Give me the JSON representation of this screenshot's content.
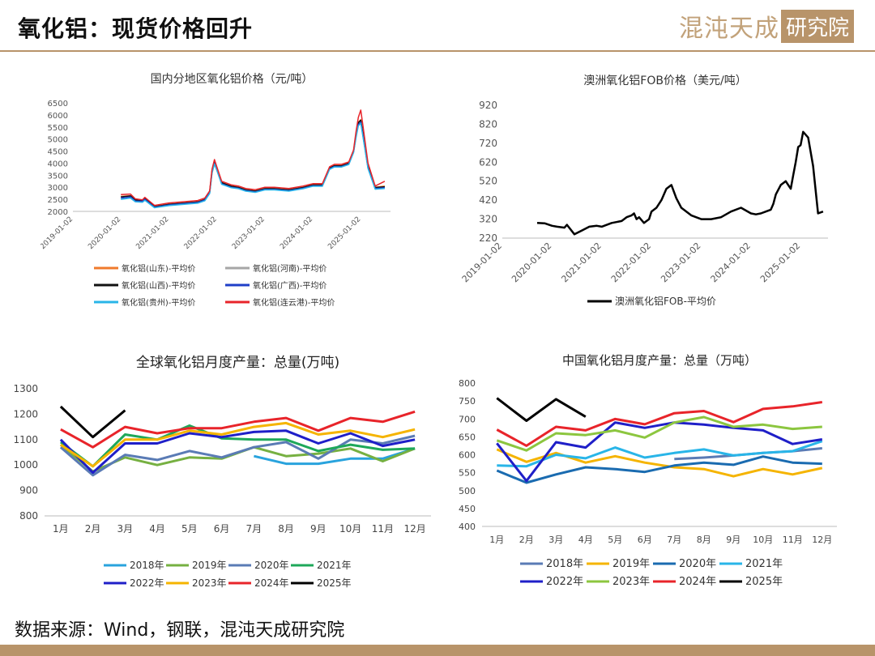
{
  "header": {
    "title": "氧化铝：现货价格回升",
    "logo_text": "混沌天成",
    "logo_box_text": "研究院"
  },
  "footer": {
    "source": "数据来源：Wind，钢联，混沌天成研究院"
  },
  "colors": {
    "brand": "#b8946a",
    "c2018": "#29a3dd",
    "c2019": "#76b041",
    "c2020": "#5a7bb5",
    "c2021": "#1ea85a",
    "c2022": "#1f1fc8",
    "c2023": "#f5b400",
    "c2024": "#e8242a",
    "c2025": "#000000"
  },
  "chart_data": [
    {
      "type": "line",
      "title": "国内分地区氧化铝价格（元/吨）",
      "x_ticks": [
        "2019-01-02",
        "2020-01-02",
        "2021-01-02",
        "2022-01-02",
        "2023-01-02",
        "2024-01-02",
        "2025-01-02"
      ],
      "x_range": [
        2019.0,
        2025.62
      ],
      "ylim": [
        2000,
        6500
      ],
      "y_ticks": [
        2000,
        2500,
        3000,
        3500,
        4000,
        4500,
        5000,
        5500,
        6000,
        6500
      ],
      "legend_position": "bottom",
      "series": [
        {
          "name": "氧化铝(山东)-平均价",
          "color": "#f07a2c",
          "x": [
            2020.0,
            2020.2,
            2020.3,
            2020.45,
            2020.5,
            2020.7,
            2021.0,
            2021.3,
            2021.6,
            2021.75,
            2021.85,
            2021.9,
            2021.95,
            2022.0,
            2022.1,
            2022.3,
            2022.45,
            2022.6,
            2022.8,
            2023.0,
            2023.2,
            2023.5,
            2023.8,
            2024.0,
            2024.2,
            2024.35,
            2024.45,
            2024.6,
            2024.75,
            2024.85,
            2024.9,
            2024.95,
            2025.0,
            2025.05,
            2025.15,
            2025.3,
            2025.5
          ],
          "values": [
            2620,
            2650,
            2480,
            2450,
            2550,
            2200,
            2300,
            2350,
            2400,
            2500,
            2800,
            3700,
            4100,
            3800,
            3200,
            3050,
            3000,
            2900,
            2850,
            2950,
            2950,
            2900,
            3000,
            3100,
            3100,
            3800,
            3900,
            3900,
            4000,
            4500,
            5200,
            5700,
            5800,
            5200,
            3900,
            3000,
            3050
          ]
        },
        {
          "name": "氧化铝(河南)-平均价",
          "color": "#a6a6a6",
          "x": [
            2020.0,
            2020.2,
            2020.3,
            2020.45,
            2020.5,
            2020.7,
            2021.0,
            2021.3,
            2021.6,
            2021.75,
            2021.85,
            2021.9,
            2021.95,
            2022.0,
            2022.1,
            2022.3,
            2022.45,
            2022.6,
            2022.8,
            2023.0,
            2023.2,
            2023.5,
            2023.8,
            2024.0,
            2024.2,
            2024.35,
            2024.45,
            2024.6,
            2024.75,
            2024.85,
            2024.9,
            2024.95,
            2025.0,
            2025.05,
            2025.15,
            2025.3,
            2025.5
          ],
          "values": [
            2600,
            2620,
            2450,
            2430,
            2520,
            2180,
            2280,
            2330,
            2380,
            2480,
            2780,
            3650,
            4050,
            3780,
            3180,
            3030,
            2980,
            2880,
            2830,
            2930,
            2930,
            2880,
            2980,
            3080,
            3080,
            3780,
            3880,
            3880,
            3980,
            4480,
            5150,
            5650,
            5750,
            5150,
            3850,
            2980,
            3000
          ]
        },
        {
          "name": "氧化铝(山西)-平均价",
          "color": "#111111",
          "x": [
            2020.0,
            2020.2,
            2020.3,
            2020.45,
            2020.5,
            2020.7,
            2021.0,
            2021.3,
            2021.6,
            2021.75,
            2021.85,
            2021.9,
            2021.95,
            2022.0,
            2022.1,
            2022.3,
            2022.45,
            2022.6,
            2022.8,
            2023.0,
            2023.2,
            2023.5,
            2023.8,
            2024.0,
            2024.2,
            2024.35,
            2024.45,
            2024.6,
            2024.75,
            2024.85,
            2024.9,
            2024.95,
            2025.0,
            2025.05,
            2025.15,
            2025.3,
            2025.5
          ],
          "values": [
            2600,
            2640,
            2470,
            2440,
            2540,
            2190,
            2290,
            2340,
            2390,
            2490,
            2790,
            3680,
            4080,
            3790,
            3190,
            3040,
            2990,
            2890,
            2840,
            2940,
            2940,
            2890,
            2990,
            3090,
            3090,
            3790,
            3890,
            3890,
            3990,
            4490,
            5180,
            5680,
            5780,
            5180,
            3870,
            2990,
            3020
          ]
        },
        {
          "name": "氧化铝(广西)-平均价",
          "color": "#1f3fc8",
          "x": [
            2020.0,
            2020.2,
            2020.3,
            2020.45,
            2020.5,
            2020.7,
            2021.0,
            2021.3,
            2021.6,
            2021.75,
            2021.85,
            2021.9,
            2021.95,
            2022.0,
            2022.1,
            2022.3,
            2022.45,
            2022.6,
            2022.8,
            2023.0,
            2023.2,
            2023.5,
            2023.8,
            2024.0,
            2024.2,
            2024.35,
            2024.45,
            2024.6,
            2024.75,
            2024.85,
            2024.9,
            2024.95,
            2025.0,
            2025.05,
            2025.15,
            2025.3,
            2025.5
          ],
          "values": [
            2550,
            2600,
            2430,
            2420,
            2500,
            2170,
            2270,
            2320,
            2370,
            2470,
            2770,
            3620,
            4000,
            3750,
            3150,
            3000,
            2960,
            2860,
            2810,
            2910,
            2910,
            2860,
            2960,
            3060,
            3060,
            3760,
            3860,
            3860,
            3960,
            4460,
            5100,
            5600,
            5700,
            5100,
            3800,
            2950,
            2980
          ]
        },
        {
          "name": "氧化铝(贵州)-平均价",
          "color": "#29b5e8",
          "x": [
            2020.0,
            2020.2,
            2020.3,
            2020.45,
            2020.5,
            2020.7,
            2021.0,
            2021.3,
            2021.6,
            2021.75,
            2021.85,
            2021.9,
            2021.95,
            2022.0,
            2022.1,
            2022.3,
            2022.45,
            2022.6,
            2022.8,
            2023.0,
            2023.2,
            2023.5,
            2023.8,
            2024.0,
            2024.2,
            2024.35,
            2024.45,
            2024.6,
            2024.75,
            2024.85,
            2024.9,
            2024.95,
            2025.0,
            2025.05,
            2025.15,
            2025.3,
            2025.5
          ],
          "values": [
            2500,
            2550,
            2400,
            2380,
            2460,
            2150,
            2240,
            2290,
            2340,
            2440,
            2740,
            3580,
            3960,
            3700,
            3120,
            2980,
            2940,
            2840,
            2790,
            2890,
            2890,
            2840,
            2940,
            3040,
            3040,
            3740,
            3840,
            3840,
            3940,
            4440,
            5050,
            5550,
            5650,
            5050,
            3780,
            2920,
            2950
          ]
        },
        {
          "name": "氧化铝(连云港)-平均价",
          "color": "#e8242a",
          "x": [
            2020.0,
            2020.2,
            2020.3,
            2020.45,
            2020.5,
            2020.7,
            2021.0,
            2021.3,
            2021.6,
            2021.75,
            2021.85,
            2021.9,
            2021.95,
            2022.0,
            2022.1,
            2022.3,
            2022.45,
            2022.6,
            2022.8,
            2023.0,
            2023.2,
            2023.5,
            2023.8,
            2024.0,
            2024.2,
            2024.35,
            2024.45,
            2024.6,
            2024.75,
            2024.85,
            2024.9,
            2024.95,
            2025.0,
            2025.05,
            2025.15,
            2025.3,
            2025.5
          ],
          "values": [
            2700,
            2720,
            2520,
            2480,
            2580,
            2250,
            2350,
            2400,
            2450,
            2550,
            2850,
            3750,
            4150,
            3850,
            3250,
            3100,
            3050,
            2950,
            2900,
            3000,
            3000,
            2950,
            3050,
            3150,
            3150,
            3850,
            3950,
            3950,
            4050,
            4550,
            5300,
            5900,
            6200,
            5500,
            4000,
            3050,
            3250
          ]
        }
      ]
    },
    {
      "type": "line",
      "title": "澳洲氧化铝FOB价格（美元/吨）",
      "x_ticks": [
        "2019-01-02",
        "2020-01-02",
        "2021-01-02",
        "2022-01-02",
        "2023-01-02",
        "2024-01-02",
        "2025-01-02"
      ],
      "x_range": [
        2019.0,
        2025.55
      ],
      "ylim": [
        220,
        920
      ],
      "y_ticks": [
        220,
        320,
        420,
        520,
        620,
        720,
        820,
        920
      ],
      "legend_position": "bottom",
      "series": [
        {
          "name": "澳洲氧化铝FOB-平均价",
          "color": "#000000",
          "x": [
            2019.7,
            2019.85,
            2020.0,
            2020.1,
            2020.25,
            2020.3,
            2020.45,
            2020.6,
            2020.75,
            2020.9,
            2021.0,
            2021.2,
            2021.4,
            2021.5,
            2021.6,
            2021.65,
            2021.7,
            2021.75,
            2021.85,
            2021.95,
            2022.0,
            2022.1,
            2022.2,
            2022.3,
            2022.4,
            2022.5,
            2022.6,
            2022.7,
            2022.8,
            2023.0,
            2023.2,
            2023.4,
            2023.6,
            2023.8,
            2024.0,
            2024.1,
            2024.2,
            2024.3,
            2024.4,
            2024.45,
            2024.5,
            2024.6,
            2024.7,
            2024.75,
            2024.8,
            2024.85,
            2024.9,
            2024.95,
            2025.0,
            2025.05,
            2025.15,
            2025.25,
            2025.35,
            2025.45
          ],
          "values": [
            300,
            298,
            285,
            280,
            275,
            290,
            240,
            260,
            280,
            285,
            280,
            300,
            310,
            330,
            340,
            350,
            320,
            330,
            300,
            320,
            360,
            380,
            420,
            480,
            500,
            430,
            380,
            360,
            340,
            320,
            320,
            330,
            360,
            380,
            350,
            345,
            350,
            360,
            370,
            400,
            450,
            500,
            520,
            500,
            480,
            550,
            620,
            700,
            710,
            780,
            750,
            600,
            350,
            360
          ]
        }
      ]
    },
    {
      "type": "line",
      "title": "全球氧化铝月度产量：总量(万吨)",
      "categories": [
        "1月",
        "2月",
        "3月",
        "4月",
        "5月",
        "6月",
        "7月",
        "8月",
        "9月",
        "10月",
        "11月",
        "12月"
      ],
      "ylim": [
        800,
        1300
      ],
      "y_ticks": [
        800,
        900,
        1000,
        1100,
        1200,
        1300
      ],
      "legend_position": "bottom",
      "series": [
        {
          "name": "2018年",
          "color": "#29a3dd",
          "values": [
            null,
            null,
            null,
            null,
            null,
            null,
            1035,
            1005,
            1005,
            1025,
            1025,
            1065
          ]
        },
        {
          "name": "2019年",
          "color": "#76b041",
          "values": [
            1080,
            975,
            1030,
            1000,
            1030,
            1025,
            1070,
            1035,
            1045,
            1065,
            1015,
            1065
          ]
        },
        {
          "name": "2020年",
          "color": "#5a7bb5",
          "values": [
            1070,
            960,
            1040,
            1020,
            1055,
            1030,
            1070,
            1090,
            1025,
            1100,
            1085,
            1115
          ]
        },
        {
          "name": "2021年",
          "color": "#1ea85a",
          "values": [
            1090,
            995,
            1120,
            1100,
            1155,
            1105,
            1100,
            1100,
            1055,
            1080,
            1060,
            1065
          ]
        },
        {
          "name": "2022年",
          "color": "#1f1fc8",
          "values": [
            1100,
            970,
            1085,
            1085,
            1125,
            1110,
            1130,
            1135,
            1085,
            1125,
            1075,
            1100
          ]
        },
        {
          "name": "2023年",
          "color": "#f5b400",
          "values": [
            1080,
            995,
            1100,
            1100,
            1135,
            1120,
            1150,
            1165,
            1120,
            1135,
            1110,
            1140
          ]
        },
        {
          "name": "2024年",
          "color": "#e8242a",
          "values": [
            1140,
            1070,
            1150,
            1125,
            1145,
            1145,
            1170,
            1185,
            1135,
            1185,
            1170,
            1210
          ]
        },
        {
          "name": "2025年",
          "color": "#000000",
          "values": [
            1230,
            1110,
            1215,
            null,
            null,
            null,
            null,
            null,
            null,
            null,
            null,
            null
          ]
        }
      ]
    },
    {
      "type": "line",
      "title": "中国氧化铝月度产量：总量（万吨）",
      "categories": [
        "1月",
        "2月",
        "3月",
        "4月",
        "5月",
        "6月",
        "7月",
        "8月",
        "9月",
        "10月",
        "11月",
        "12月"
      ],
      "ylim": [
        400,
        800
      ],
      "y_ticks": [
        400,
        450,
        500,
        550,
        600,
        650,
        700,
        750,
        800
      ],
      "legend_position": "bottom",
      "series": [
        {
          "name": "2018年",
          "color": "#5a7bb5",
          "values": [
            null,
            null,
            null,
            null,
            null,
            null,
            588,
            592,
            598,
            605,
            610,
            618
          ]
        },
        {
          "name": "2019年",
          "color": "#f5b400",
          "values": [
            615,
            580,
            605,
            578,
            596,
            578,
            565,
            560,
            540,
            560,
            545,
            563
          ]
        },
        {
          "name": "2020年",
          "color": "#1a6bb0",
          "values": [
            556,
            522,
            545,
            565,
            560,
            552,
            570,
            578,
            572,
            595,
            578,
            575
          ]
        },
        {
          "name": "2021年",
          "color": "#29b5e8",
          "values": [
            570,
            568,
            600,
            590,
            620,
            592,
            605,
            615,
            598,
            605,
            610,
            638
          ]
        },
        {
          "name": "2022年",
          "color": "#1f1fc8",
          "values": [
            632,
            527,
            635,
            620,
            690,
            675,
            690,
            684,
            675,
            668,
            630,
            643
          ]
        },
        {
          "name": "2023年",
          "color": "#8cc63f",
          "values": [
            640,
            612,
            660,
            655,
            668,
            648,
            690,
            705,
            678,
            684,
            672,
            678
          ]
        },
        {
          "name": "2024年",
          "color": "#e8242a",
          "values": [
            670,
            625,
            678,
            668,
            700,
            685,
            716,
            722,
            691,
            728,
            735,
            747
          ]
        },
        {
          "name": "2025年",
          "color": "#000000",
          "values": [
            758,
            695,
            755,
            706,
            null,
            null,
            null,
            null,
            null,
            null,
            null,
            null
          ]
        }
      ]
    }
  ]
}
